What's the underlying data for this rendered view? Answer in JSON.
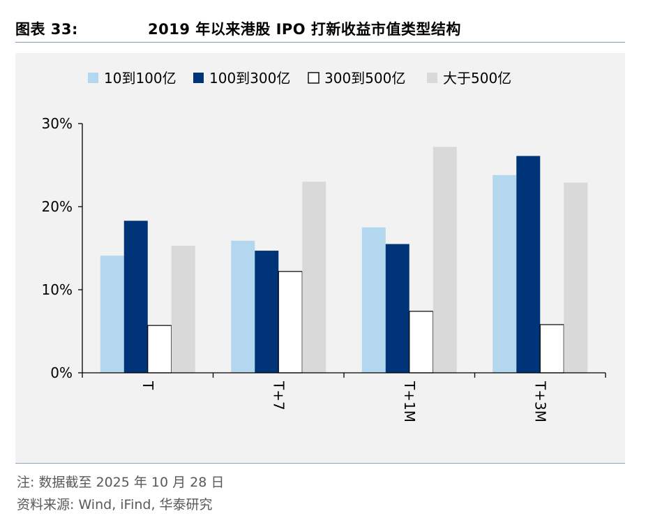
{
  "header": {
    "figure_label": "图表 33:",
    "figure_title": "2019 年以来港股 IPO 打新收益市值类型结构"
  },
  "chart_data": {
    "type": "bar",
    "categories": [
      "T",
      "T+7",
      "T+1M",
      "T+3M"
    ],
    "series": [
      {
        "name": "10到100亿",
        "color": "#b4d7f0",
        "values": [
          14.1,
          15.9,
          17.5,
          23.8
        ]
      },
      {
        "name": "100到300亿",
        "color": "#003478",
        "values": [
          18.3,
          14.7,
          15.5,
          26.1
        ]
      },
      {
        "name": "300到500亿",
        "color": "#ffffff",
        "values": [
          5.7,
          12.2,
          7.4,
          5.8
        ]
      },
      {
        "name": "大于500亿",
        "color": "#d9d9d9",
        "values": [
          15.3,
          23.0,
          27.2,
          22.9
        ]
      }
    ],
    "y_ticks": [
      "0%",
      "10%",
      "20%",
      "30%"
    ],
    "ylim": [
      0,
      30
    ],
    "legend_position": "top",
    "grid": false
  },
  "footer": {
    "note": "注:  数据截至 2025 年 10 月 28 日",
    "source": "资料来源:  Wind,  iFind,  华泰研究"
  }
}
